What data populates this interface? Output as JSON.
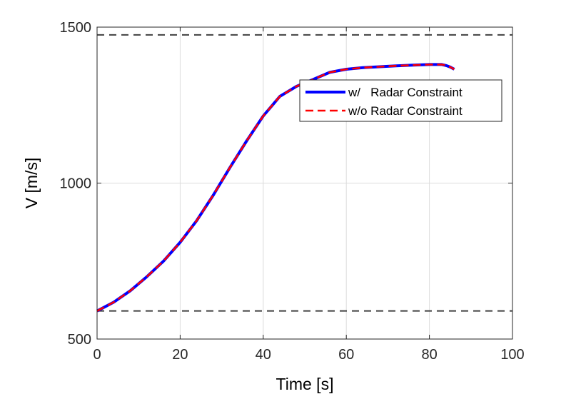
{
  "chart_data": {
    "type": "line",
    "xlabel": "Time [s]",
    "ylabel": "V [m/s]",
    "xlim": [
      0,
      100
    ],
    "ylim": [
      500,
      1500
    ],
    "xticks": [
      0,
      20,
      40,
      60,
      80,
      100
    ],
    "yticks": [
      500,
      1000,
      1500
    ],
    "xtick_labels": [
      "0",
      "20",
      "40",
      "60",
      "80",
      "100"
    ],
    "ytick_labels": [
      "500",
      "1000",
      "1500"
    ],
    "grid": true,
    "legend": "top-right",
    "series": [
      {
        "name": "w/   Radar Constraint",
        "color": "#0000ff",
        "style": "solid",
        "x": [
          0,
          4,
          8,
          12,
          16,
          20,
          24,
          28,
          32,
          36,
          40,
          44,
          48,
          52,
          56,
          60,
          64,
          68,
          72,
          76,
          80,
          83,
          84,
          85,
          86
        ],
        "y": [
          590,
          618,
          655,
          700,
          750,
          810,
          880,
          962,
          1050,
          1135,
          1215,
          1278,
          1310,
          1332,
          1355,
          1365,
          1370,
          1373,
          1376,
          1378,
          1380,
          1380,
          1377,
          1372,
          1365
        ]
      },
      {
        "name": "w/o Radar Constraint",
        "color": "#ff0000",
        "style": "dashed",
        "x": [
          0,
          4,
          8,
          12,
          16,
          20,
          24,
          28,
          32,
          36,
          40,
          44,
          48,
          52,
          56,
          60,
          64,
          68,
          72,
          76,
          80,
          83,
          84,
          85,
          86
        ],
        "y": [
          590,
          618,
          655,
          700,
          750,
          810,
          880,
          962,
          1050,
          1135,
          1215,
          1278,
          1310,
          1332,
          1355,
          1365,
          1370,
          1373,
          1376,
          1378,
          1380,
          1380,
          1377,
          1372,
          1365
        ]
      }
    ],
    "reference_lines": [
      {
        "orientation": "horizontal",
        "y": 1475,
        "color": "#404040",
        "style": "dashed"
      },
      {
        "orientation": "horizontal",
        "y": 590,
        "color": "#404040",
        "style": "dashed"
      }
    ]
  }
}
